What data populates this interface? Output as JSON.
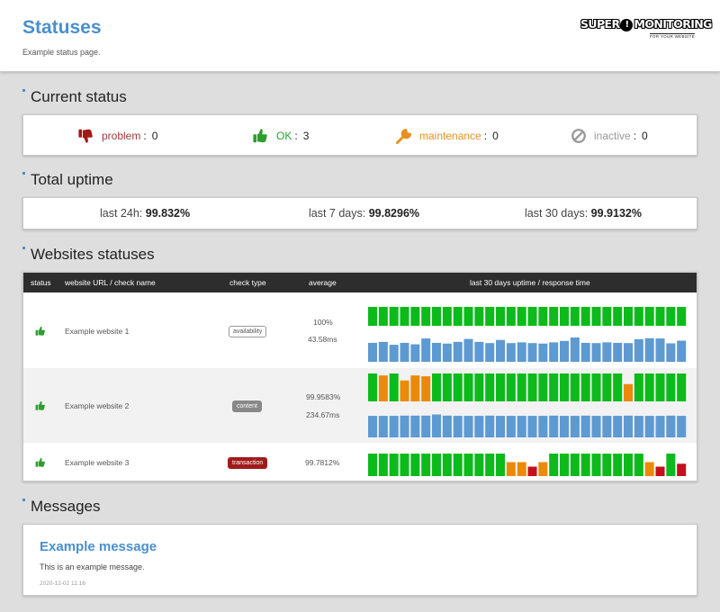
{
  "header": {
    "title": "Statuses",
    "subtitle": "Example status page.",
    "logo_main_left": "SUPER",
    "logo_bang": "!",
    "logo_main_right": "MONITORING",
    "logo_sub": "FOR YOUR WEBSITE"
  },
  "current_status": {
    "heading": "Current status",
    "items": [
      {
        "label": "problem",
        "value": "0",
        "color": "#a33a3a",
        "icon": "thumbs-down-icon"
      },
      {
        "label": "OK",
        "value": "3",
        "color": "#2e9e2e",
        "icon": "thumbs-up-icon"
      },
      {
        "label": "maintenance",
        "value": "0",
        "color": "#e8901c",
        "icon": "wrench-icon"
      },
      {
        "label": "inactive",
        "value": "0",
        "color": "#999999",
        "icon": "ban-icon"
      }
    ]
  },
  "total_uptime": {
    "heading": "Total uptime",
    "items": [
      {
        "label": "last 24h:",
        "value": "99.832%"
      },
      {
        "label": "last 7 days:",
        "value": "99.8296%"
      },
      {
        "label": "last 30 days:",
        "value": "99.9132%"
      }
    ]
  },
  "websites": {
    "heading": "Websites statuses",
    "columns": [
      "status",
      "website URL / check name",
      "check type",
      "average",
      "last 30 days uptime / response time"
    ],
    "rows": [
      {
        "name": "Example website 1",
        "check_type": "availability",
        "average_uptime": "100%",
        "average_response": "43.58ms",
        "uptime": [
          "g",
          "g",
          "g",
          "g",
          "g",
          "g",
          "g",
          "g",
          "g",
          "g",
          "g",
          "g",
          "g",
          "g",
          "g",
          "g",
          "g",
          "g",
          "g",
          "g",
          "g",
          "g",
          "g",
          "g",
          "g",
          "g",
          "g",
          "g",
          "g",
          "g"
        ],
        "response": [
          0.78,
          0.82,
          0.7,
          0.78,
          0.72,
          0.96,
          0.78,
          0.75,
          0.82,
          0.94,
          0.82,
          0.77,
          0.9,
          0.77,
          0.8,
          0.77,
          0.75,
          0.8,
          0.86,
          1.0,
          0.78,
          0.77,
          0.8,
          0.78,
          0.77,
          0.93,
          0.97,
          0.96,
          0.76,
          0.87
        ]
      },
      {
        "name": "Example website 2",
        "check_type": "content",
        "average_uptime": "99.9583%",
        "average_response": "234.67ms",
        "uptime": [
          "g",
          "o",
          "g",
          "o",
          "o",
          "o",
          "g",
          "g",
          "g",
          "g",
          "g",
          "g",
          "g",
          "g",
          "g",
          "g",
          "g",
          "g",
          "g",
          "g",
          "g",
          "g",
          "g",
          "g",
          "o",
          "g",
          "g",
          "g",
          "g",
          "g"
        ],
        "response": [
          0.92,
          0.92,
          0.92,
          0.93,
          0.93,
          0.93,
          0.98,
          0.93,
          0.92,
          0.92,
          0.92,
          0.93,
          0.92,
          0.92,
          0.92,
          0.92,
          0.92,
          0.93,
          0.92,
          0.92,
          0.93,
          0.92,
          0.92,
          0.92,
          0.93,
          0.92,
          0.92,
          0.92,
          0.93,
          0.92
        ]
      },
      {
        "name": "Example website 3",
        "check_type": "transaction",
        "average_uptime": "99.7812%",
        "uptime": [
          "g",
          "g",
          "g",
          "g",
          "g",
          "g",
          "g",
          "g",
          "g",
          "g",
          "g",
          "g",
          "g",
          "o",
          "o",
          "r",
          "o",
          "g",
          "g",
          "g",
          "g",
          "g",
          "g",
          "g",
          "g",
          "g",
          "o",
          "r",
          "g",
          "r"
        ]
      }
    ],
    "status_icon": "thumbs-up-icon",
    "colors": {
      "g": "#0dba1c",
      "o": "#eb8a0a",
      "r": "#c4101c",
      "response": "#5e9ad1"
    }
  },
  "messages": {
    "heading": "Messages",
    "items": [
      {
        "title": "Example message",
        "body": "This is an example message.",
        "date": "2020-12-02 11:16"
      }
    ]
  }
}
